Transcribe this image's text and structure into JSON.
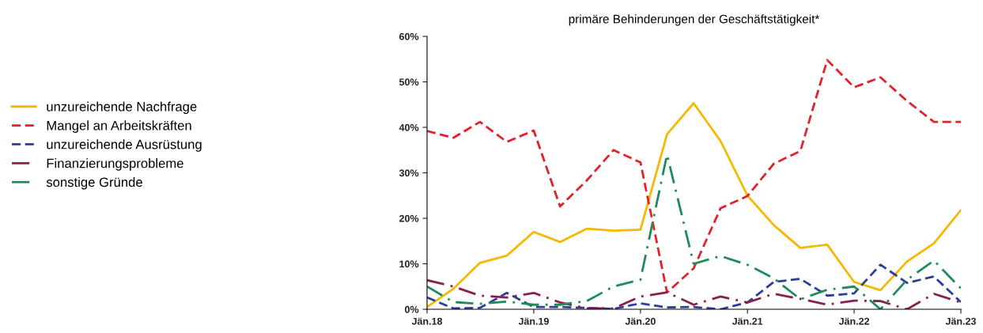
{
  "chart_data": {
    "type": "line",
    "title": "primäre Behinderungen der Geschäftstätigkeit*",
    "x": [
      "2018-01",
      "2018-04",
      "2018-07",
      "2018-10",
      "2019-01",
      "2019-04",
      "2019-07",
      "2019-10",
      "2020-01",
      "2020-04",
      "2020-07",
      "2020-10",
      "2021-01",
      "2021-04",
      "2021-07",
      "2021-10",
      "2022-01",
      "2022-04",
      "2022-07",
      "2022-10",
      "2023-01"
    ],
    "series": [
      {
        "name": "unzureichende Nachfrage",
        "color": "#f5b800",
        "line_style": "solid",
        "values": [
          0.5,
          4.5,
          10.2,
          11.8,
          17,
          14.8,
          17.7,
          17.3,
          17.5,
          38.5,
          45.3,
          37,
          25,
          18.5,
          13.5,
          14.2,
          6,
          4.2,
          10.5,
          14.5,
          21.8
        ]
      },
      {
        "name": "Mangel an Arbeitskräften",
        "color": "#e4202a",
        "line_style": "dashed",
        "values": [
          39.2,
          37.7,
          41.2,
          36.8,
          39.3,
          22.6,
          28.3,
          35,
          32.3,
          3.7,
          9,
          22.2,
          24.9,
          32,
          34.8,
          54.8,
          48.8,
          51,
          45.8,
          41.2,
          41.2
        ]
      },
      {
        "name": "unzureichende Ausrüstung",
        "color": "#2e3d9e",
        "line_style": "dashed",
        "values": [
          2.6,
          0.2,
          0.3,
          3.6,
          0.5,
          0.5,
          0.3,
          0.1,
          1.3,
          0.4,
          0.5,
          0,
          1.5,
          6,
          6.7,
          3,
          3.5,
          9.8,
          5.8,
          7.2,
          1.6
        ]
      },
      {
        "name": "Finanzierungsprobleme",
        "color": "#8b1f4f",
        "line_style": "dashdot",
        "values": [
          6.4,
          5,
          3,
          2.6,
          3.6,
          1.5,
          0.2,
          0.2,
          2.8,
          3.7,
          1,
          2.8,
          1.5,
          3.4,
          2.3,
          1,
          1.9,
          1.8,
          0,
          3.4,
          1.5
        ]
      },
      {
        "name": "sonstige Gründe",
        "color": "#1e8c5a",
        "line_style": "dashdot",
        "values": [
          5,
          1.6,
          1.2,
          1.7,
          1,
          1,
          1.8,
          5,
          6.5,
          34,
          10,
          11.7,
          9.8,
          6.8,
          2.2,
          4.3,
          5,
          0,
          6.5,
          10.7,
          4.6
        ]
      }
    ],
    "xlim": [
      "2018-01",
      "2023-01"
    ],
    "xticks": [
      {
        "value": "2018-01",
        "label": "Jän.18"
      },
      {
        "value": "2019-01",
        "label": "Jän.19"
      },
      {
        "value": "2020-01",
        "label": "Jän.20"
      },
      {
        "value": "2021-01",
        "label": "Jän.21"
      },
      {
        "value": "2022-01",
        "label": "Jän.22"
      },
      {
        "value": "2023-01",
        "label": "Jän.23"
      }
    ],
    "ylim": [
      0,
      60
    ],
    "yticks": [
      {
        "value": 0,
        "label": "0%"
      },
      {
        "value": 10,
        "label": "10%"
      },
      {
        "value": 20,
        "label": "20%"
      },
      {
        "value": 30,
        "label": "30%"
      },
      {
        "value": 40,
        "label": "40%"
      },
      {
        "value": 50,
        "label": "50%"
      },
      {
        "value": 60,
        "label": "60%"
      }
    ],
    "grid": false,
    "legend": "left",
    "marker": "none"
  }
}
